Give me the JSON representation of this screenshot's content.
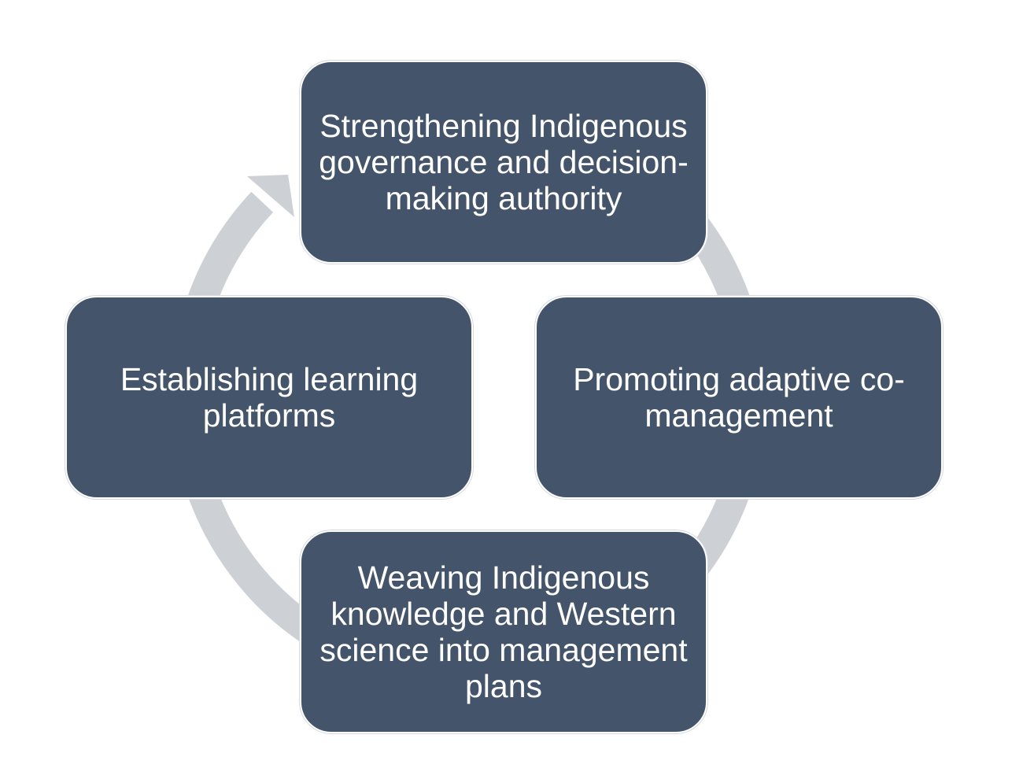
{
  "diagram": {
    "type": "cycle",
    "direction": "clockwise",
    "colors": {
      "node_fill": "#44546a",
      "node_text": "#ffffff",
      "arrow": "#cdd0d5"
    },
    "nodes": [
      {
        "id": "top",
        "label": "Strengthening Indigenous governance and decision-making authority"
      },
      {
        "id": "right",
        "label": "Promoting adaptive co-management"
      },
      {
        "id": "bottom",
        "label": "Weaving Indigenous knowledge and Western science into management plans"
      },
      {
        "id": "left",
        "label": "Establishing learning platforms"
      }
    ]
  }
}
